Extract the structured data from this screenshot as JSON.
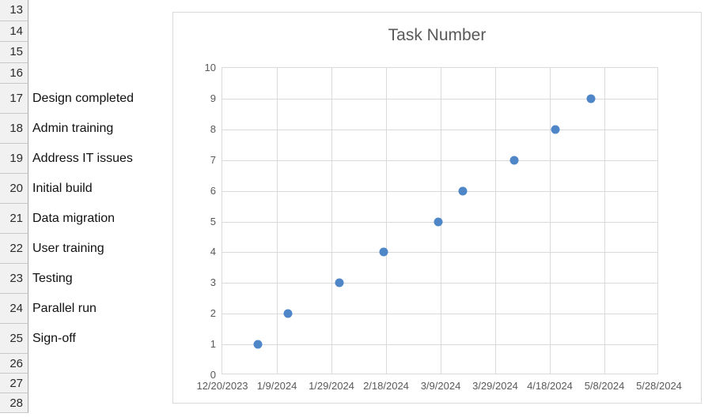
{
  "sheet": {
    "rows": [
      {
        "num": "13",
        "label": ""
      },
      {
        "num": "14",
        "label": ""
      },
      {
        "num": "15",
        "label": ""
      },
      {
        "num": "16",
        "label": ""
      },
      {
        "num": "17",
        "label": "Design completed"
      },
      {
        "num": "18",
        "label": "Admin training"
      },
      {
        "num": "19",
        "label": "Address IT issues"
      },
      {
        "num": "20",
        "label": "Initial build"
      },
      {
        "num": "21",
        "label": "Data migration"
      },
      {
        "num": "22",
        "label": "User training"
      },
      {
        "num": "23",
        "label": "Testing"
      },
      {
        "num": "24",
        "label": "Parallel run"
      },
      {
        "num": "25",
        "label": "Sign-off"
      },
      {
        "num": "26",
        "label": ""
      },
      {
        "num": "27",
        "label": ""
      },
      {
        "num": "28",
        "label": ""
      }
    ]
  },
  "chart_data": {
    "type": "scatter",
    "title": "Task Number",
    "xlabel": "",
    "ylabel": "",
    "grid": true,
    "legend": false,
    "x_axis": {
      "type": "date",
      "min": "12/20/2023",
      "max": "5/28/2024",
      "tick_interval_days": 20,
      "tick_labels": [
        "12/20/2023",
        "1/9/2024",
        "1/29/2024",
        "2/18/2024",
        "3/9/2024",
        "3/29/2024",
        "4/18/2024",
        "5/8/2024",
        "5/28/2024"
      ]
    },
    "y_axis": {
      "min": 0,
      "max": 10,
      "tick_labels": [
        "0",
        "1",
        "2",
        "3",
        "4",
        "5",
        "6",
        "7",
        "8",
        "9",
        "10"
      ]
    },
    "series": [
      {
        "name": "Task Number",
        "marker_color": "#4E86C8",
        "points": [
          {
            "x": "1/2/2024",
            "y": 1
          },
          {
            "x": "1/13/2024",
            "y": 2
          },
          {
            "x": "2/1/2024",
            "y": 3
          },
          {
            "x": "2/17/2024",
            "y": 4
          },
          {
            "x": "3/8/2024",
            "y": 5
          },
          {
            "x": "3/17/2024",
            "y": 6
          },
          {
            "x": "4/5/2024",
            "y": 7
          },
          {
            "x": "4/20/2024",
            "y": 8
          },
          {
            "x": "5/3/2024",
            "y": 9
          }
        ]
      }
    ],
    "colors": {
      "gridline": "#d9d9d9",
      "axis_text": "#595959",
      "title_text": "#595959",
      "marker": "#4E86C8"
    }
  }
}
